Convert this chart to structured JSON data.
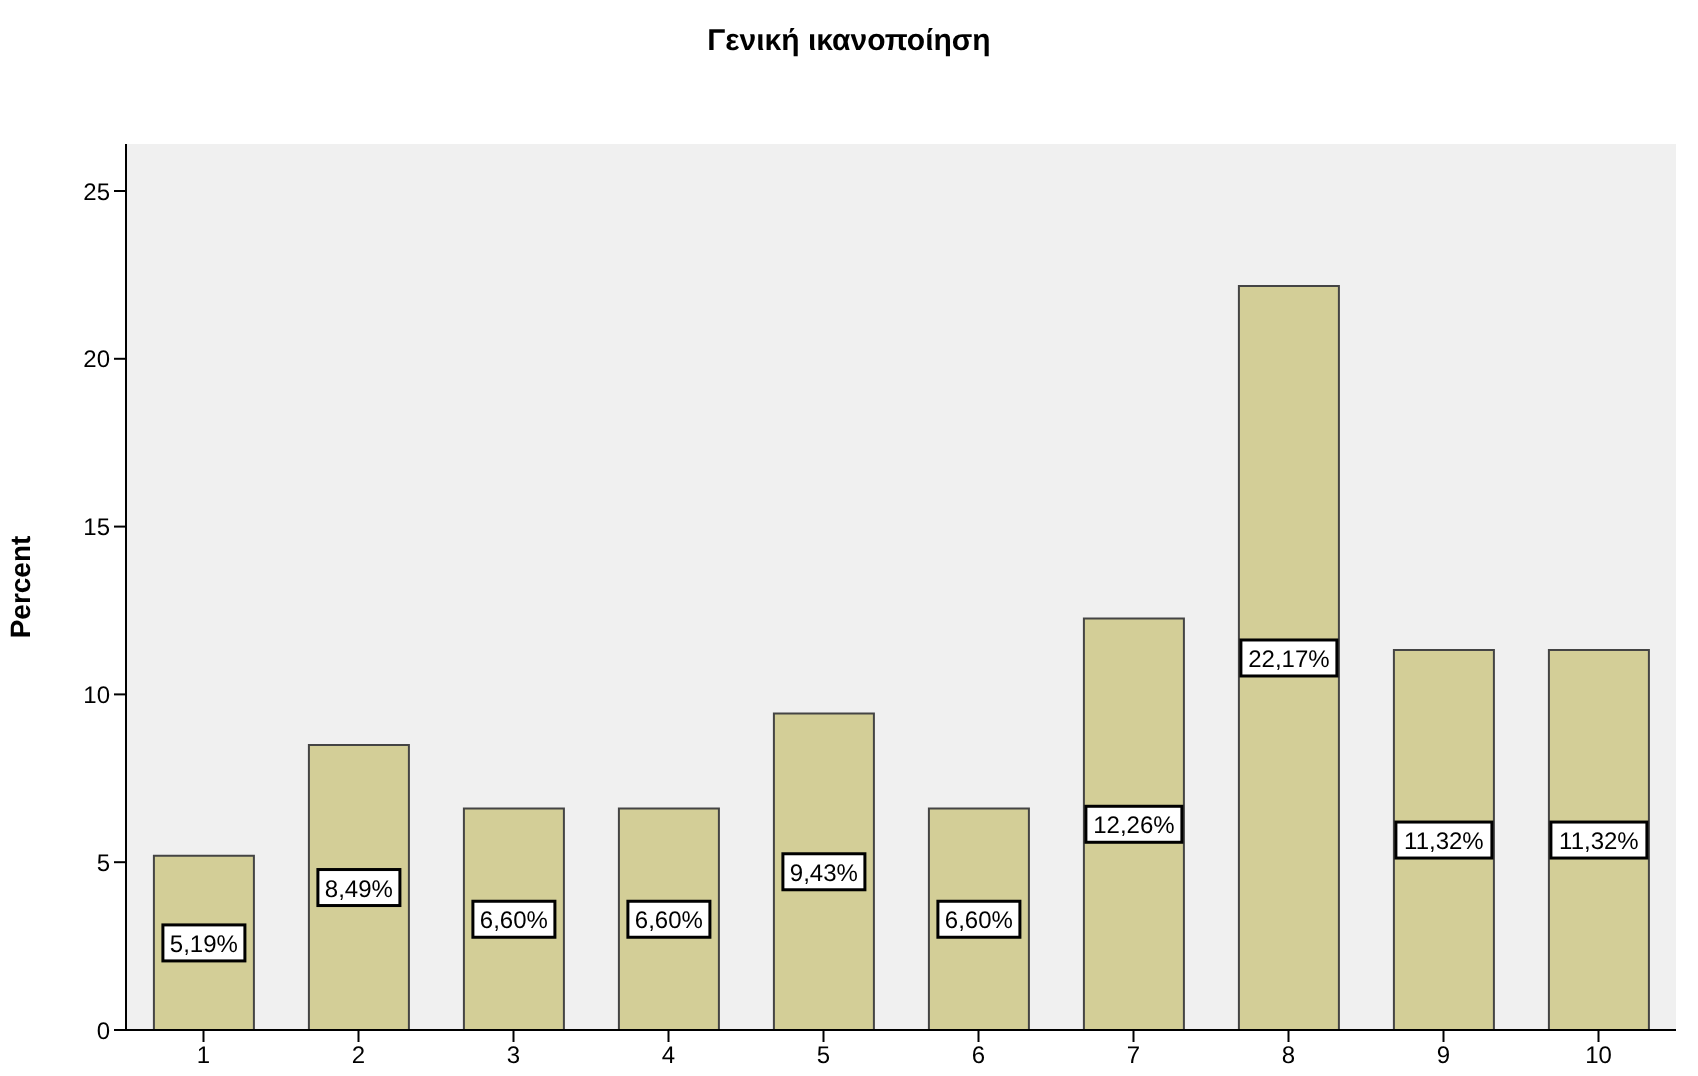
{
  "chart_data": {
    "type": "bar",
    "title": "Γενική ικανοποίηση",
    "ylabel": "Percent",
    "categories": [
      "1",
      "2",
      "3",
      "4",
      "5",
      "6",
      "7",
      "8",
      "9",
      "10"
    ],
    "values": [
      5.19,
      8.49,
      6.6,
      6.6,
      9.43,
      6.6,
      12.26,
      22.17,
      11.32,
      11.32
    ],
    "value_labels": [
      "5,19%",
      "8,49%",
      "6,60%",
      "6,60%",
      "9,43%",
      "6,60%",
      "12,26%",
      "22,17%",
      "11,32%",
      "11,32%"
    ],
    "color": "#d3ce97",
    "ylim": [
      0,
      26.4
    ],
    "yticks": [
      0,
      5,
      10,
      15,
      20,
      25
    ]
  }
}
